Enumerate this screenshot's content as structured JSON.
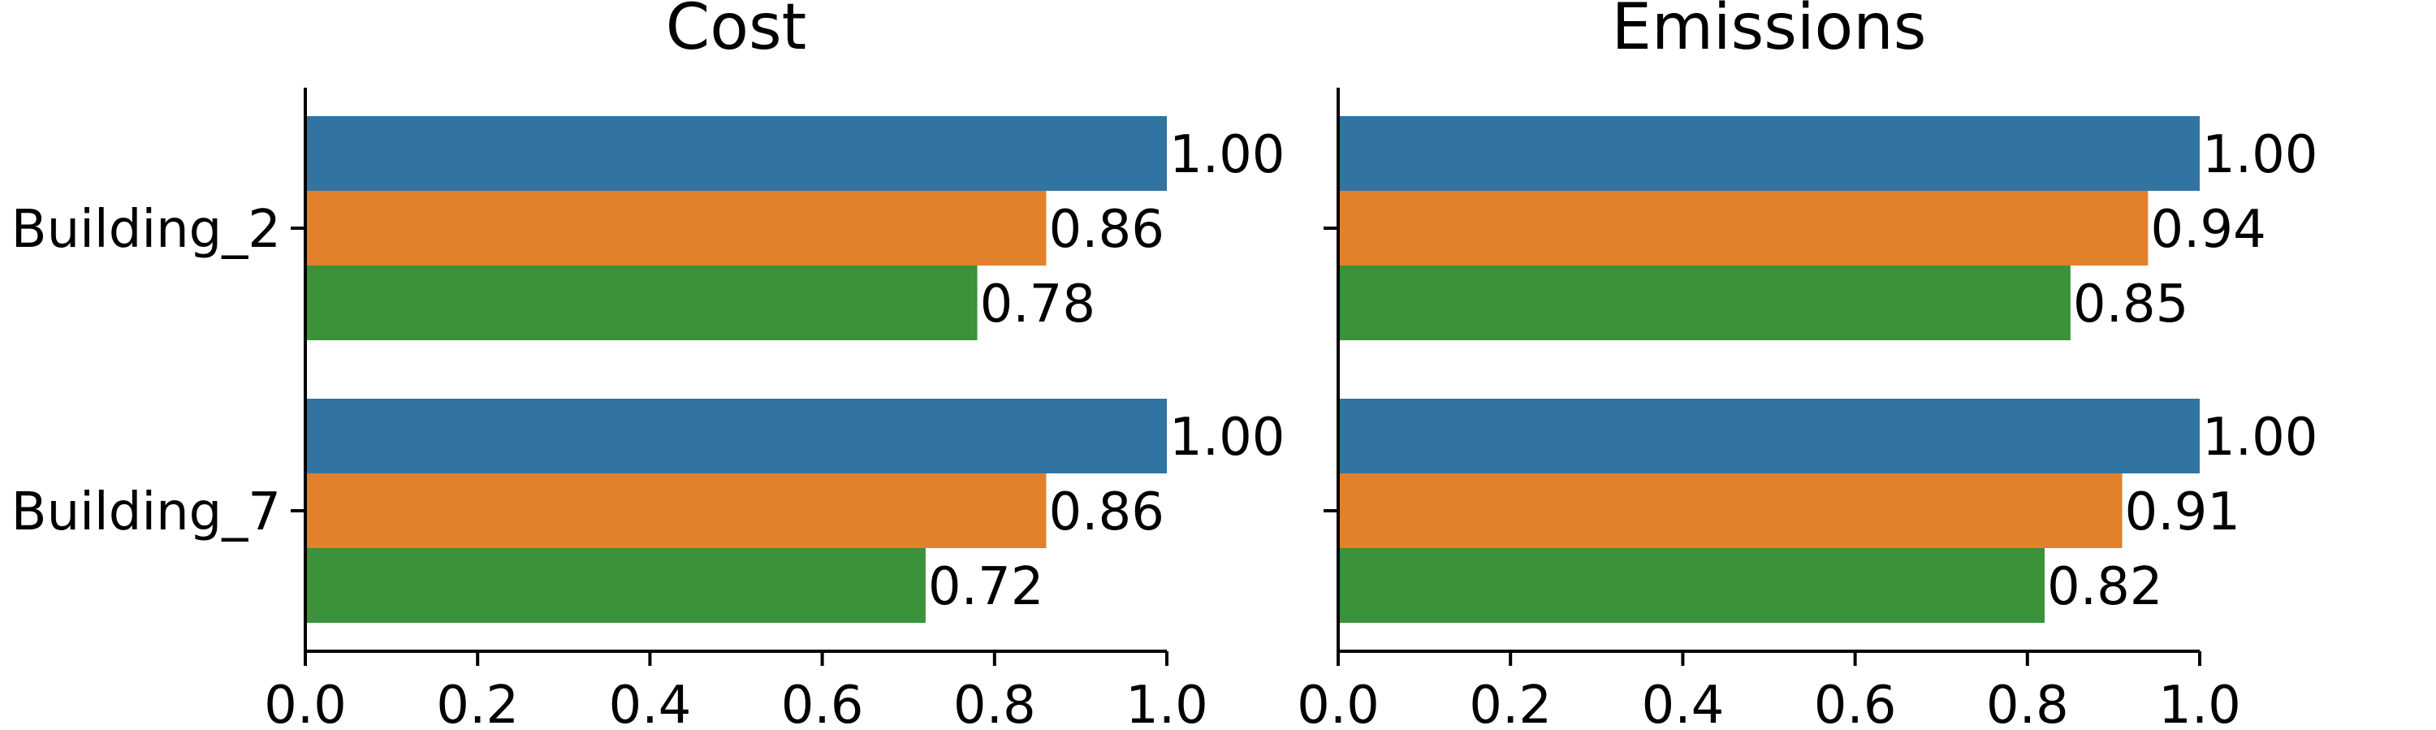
{
  "chart_data": [
    {
      "type": "bar",
      "orientation": "horizontal",
      "title": "Cost",
      "xlabel": "",
      "ylabel": "",
      "xlim": [
        0,
        1.0
      ],
      "xticks": [
        "0.0",
        "0.2",
        "0.4",
        "0.6",
        "0.8",
        "1.0"
      ],
      "categories": [
        "Building_2",
        "Building_7"
      ],
      "series": [
        {
          "color": "#3274a1",
          "values": [
            1.0,
            1.0
          ],
          "labels": [
            "1.00",
            "1.00"
          ]
        },
        {
          "color": "#e1812c",
          "values": [
            0.86,
            0.86
          ],
          "labels": [
            "0.86",
            "0.86"
          ]
        },
        {
          "color": "#3a923a",
          "values": [
            0.78,
            0.72
          ],
          "labels": [
            "0.78",
            "0.72"
          ]
        }
      ],
      "grid": false,
      "legend": "none"
    },
    {
      "type": "bar",
      "orientation": "horizontal",
      "title": "Emissions",
      "xlabel": "",
      "ylabel": "",
      "xlim": [
        0,
        1.0
      ],
      "xticks": [
        "0.0",
        "0.2",
        "0.4",
        "0.6",
        "0.8",
        "1.0"
      ],
      "categories": [
        "Building_2",
        "Building_7"
      ],
      "series": [
        {
          "color": "#3274a1",
          "values": [
            1.0,
            1.0
          ],
          "labels": [
            "1.00",
            "1.00"
          ]
        },
        {
          "color": "#e1812c",
          "values": [
            0.94,
            0.91
          ],
          "labels": [
            "0.94",
            "0.91"
          ]
        },
        {
          "color": "#3a923a",
          "values": [
            0.85,
            0.82
          ],
          "labels": [
            "0.85",
            "0.82"
          ]
        }
      ],
      "grid": false,
      "legend": "none"
    }
  ]
}
